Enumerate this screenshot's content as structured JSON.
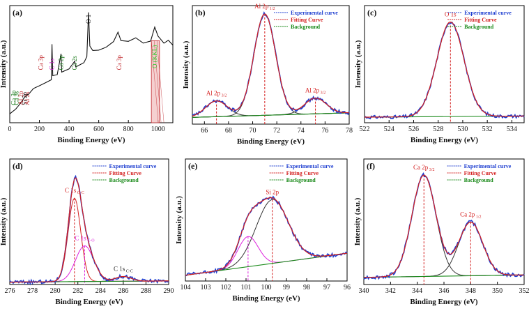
{
  "chart_data": [
    {
      "panel": "(a)",
      "type": "line",
      "title": "",
      "xlabel": "Binding Energy (eV)",
      "ylabel": "Intensity (a.u.)",
      "xlim": [
        0,
        1100
      ],
      "xticks": [
        "0",
        "200",
        "400",
        "600",
        "800",
        "1000"
      ],
      "x": [
        0,
        20,
        40,
        60,
        80,
        100,
        130,
        160,
        200,
        240,
        280,
        285,
        290,
        320,
        346,
        350,
        400,
        438,
        445,
        500,
        520,
        531,
        540,
        560,
        600,
        650,
        700,
        730,
        750,
        800,
        850,
        900,
        950,
        978,
        1000,
        1040,
        1070,
        1100
      ],
      "y": [
        0.08,
        0.1,
        0.13,
        0.16,
        0.19,
        0.23,
        0.27,
        0.3,
        0.33,
        0.36,
        0.39,
        0.7,
        0.42,
        0.44,
        0.62,
        0.46,
        0.48,
        0.56,
        0.5,
        0.54,
        0.6,
        1.0,
        0.68,
        0.64,
        0.66,
        0.68,
        0.72,
        0.82,
        0.74,
        0.73,
        0.76,
        0.72,
        0.74,
        0.85,
        0.78,
        0.72,
        0.74,
        0.7
      ],
      "highlight_range": [
        955,
        1010
      ],
      "annotations": [
        {
          "text": "Ca 3p",
          "x": 25,
          "color": "#1a7a1a"
        },
        {
          "text": "Ca 3s",
          "x": 45,
          "color": "#1a7a1a"
        },
        {
          "text": "Al 2p",
          "x": 75,
          "color": "#c0282d"
        },
        {
          "text": "Si 2p",
          "x": 100,
          "color": "#111111"
        },
        {
          "text": "Al 2s",
          "x": 118,
          "color": "#c0282d"
        },
        {
          "text": "Ca 3p",
          "x": 210,
          "color": "#c0282d"
        },
        {
          "text": "C 1s",
          "x": 285,
          "color": "#cc22cc"
        },
        {
          "text": "Ca 2p",
          "x": 346,
          "color": "#1a7a1a"
        },
        {
          "text": "Ca 2s",
          "x": 438,
          "color": "#1a7a1a"
        },
        {
          "text": "O 1",
          "x": 531,
          "color": "#111111"
        },
        {
          "text": "Ca 3p",
          "x": 738,
          "color": "#c0282d"
        },
        {
          "text": "O (KKL)",
          "x": 978,
          "color": "#33cc33"
        }
      ]
    },
    {
      "panel": "(b)",
      "type": "line",
      "xlabel": "Binding Energy (eV)",
      "ylabel": "Intensity (a.u.)",
      "xlim": [
        65,
        78
      ],
      "xticks": [
        "66",
        "68",
        "70",
        "72",
        "74",
        "76",
        "78"
      ],
      "legend": [
        "Experimental curve",
        "Fitting Curve",
        "Background"
      ],
      "peaks": [
        {
          "label": "Al 2p",
          "sub": "3/2",
          "center": 67.0,
          "height": 0.14,
          "width": 0.9
        },
        {
          "label": "Al 2p",
          "sub": "1/2",
          "center": 71.0,
          "height": 0.9,
          "width": 0.9
        },
        {
          "label": "Al 2p",
          "sub": "3/2",
          "center": 75.2,
          "height": 0.14,
          "width": 0.9
        }
      ],
      "background": [
        0.06,
        0.1
      ]
    },
    {
      "panel": "(c)",
      "type": "line",
      "xlabel": "Binding Energy (eV)",
      "ylabel": "Intensity (a.u.)",
      "xlim": [
        522,
        535
      ],
      "xticks": [
        "522",
        "524",
        "526",
        "528",
        "530",
        "532",
        "534"
      ],
      "legend": [
        "Experimental curve",
        "Fitting Curve",
        "Background"
      ],
      "peaks": [
        {
          "label": "O 1s",
          "center": 529.0,
          "height": 0.85,
          "width": 1.1
        }
      ],
      "background": [
        0.05,
        0.06
      ]
    },
    {
      "panel": "(d)",
      "type": "line",
      "xlabel": "Binding Energy (eV)",
      "ylabel": "Intensity (a.u.)",
      "xlim": [
        276,
        290
      ],
      "xticks": [
        "276",
        "278",
        "280",
        "282",
        "284",
        "286",
        "288",
        "290"
      ],
      "legend": [
        "Experimental curve",
        "Fitting Curve",
        "Background"
      ],
      "peaks": [
        {
          "label": "C 1s",
          "sub": "C-C",
          "center": 281.7,
          "height": 0.7,
          "width": 0.55,
          "color": "#d42020"
        },
        {
          "label": "C 1s",
          "sub": "C-O",
          "center": 282.6,
          "height": 0.3,
          "width": 0.8,
          "color": "#dd22dd"
        },
        {
          "label": "C 1s",
          "sub": "C-C",
          "center": 286.0,
          "height": 0.04,
          "width": 0.7,
          "color": "#222222"
        }
      ],
      "background": [
        0.02,
        0.03
      ]
    },
    {
      "panel": "(e)",
      "type": "line",
      "xlabel": "Binding Energy (eV)",
      "ylabel": "Intensity (a.u.)",
      "xlim": [
        104,
        96
      ],
      "xticks": [
        "104",
        "103",
        "102",
        "101",
        "100",
        "99",
        "98",
        "97",
        "96"
      ],
      "legend": [
        "Experimental curve",
        "Fitting Curve",
        "Background"
      ],
      "peaks": [
        {
          "label": "Si 2p",
          "center": 99.7,
          "height": 0.55,
          "width": 0.8
        },
        {
          "label": "",
          "center": 100.9,
          "height": 0.26,
          "width": 0.5,
          "color": "#dd22dd"
        }
      ],
      "background": [
        0.05,
        0.24
      ]
    },
    {
      "panel": "(f)",
      "type": "line",
      "xlabel": "Binding Energy (eV)",
      "ylabel": "Intensity (a.u.)",
      "xlim": [
        340,
        352
      ],
      "xticks": [
        "340",
        "342",
        "344",
        "346",
        "348",
        "350",
        "352"
      ],
      "legend": [
        "Experimental curve",
        "Fitting Curve",
        "Background"
      ],
      "peaks": [
        {
          "label": "Ca 2p",
          "sub": "3/2",
          "center": 344.5,
          "height": 0.85,
          "width": 0.9
        },
        {
          "label": "Ca 2p",
          "sub": "1/2",
          "center": 348.0,
          "height": 0.45,
          "width": 0.9
        }
      ],
      "background": [
        0.06,
        0.08
      ]
    }
  ],
  "colors": {
    "experimental": "#1f3fd0",
    "fitting": "#d42020",
    "background": "#1a8a1a",
    "legend_exp": "#1f3fd0",
    "legend_fit": "#d42020",
    "legend_bg": "#1a8a1a"
  }
}
